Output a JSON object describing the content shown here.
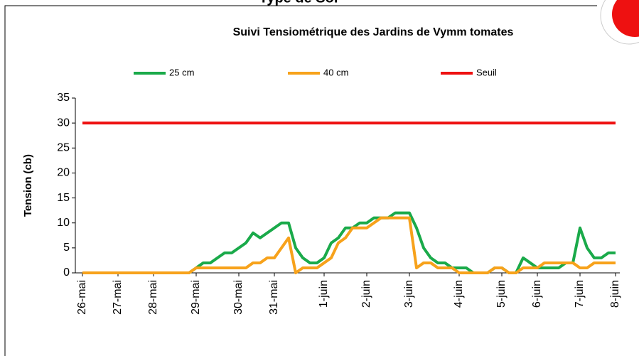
{
  "header_text": "Type de Sol",
  "chart_data": {
    "type": "line",
    "title": "Suivi Tensiométrique des Jardins de Vymm tomates",
    "y_label": "Tension (cb)",
    "categories": [
      "26-mai",
      null,
      null,
      null,
      null,
      "27-mai",
      null,
      null,
      null,
      null,
      "28-mai",
      null,
      null,
      null,
      null,
      null,
      "29-mai",
      null,
      null,
      null,
      null,
      null,
      "30-mai",
      null,
      null,
      null,
      null,
      "31-mai",
      null,
      null,
      null,
      null,
      null,
      null,
      "1-juin",
      null,
      null,
      null,
      null,
      null,
      "2-juin",
      null,
      null,
      null,
      null,
      null,
      "3-juin",
      null,
      null,
      null,
      null,
      null,
      null,
      "4-juin",
      null,
      null,
      null,
      null,
      null,
      "5-juin",
      null,
      null,
      null,
      null,
      "6-juin",
      null,
      null,
      null,
      null,
      null,
      "7-juin",
      null,
      null,
      null,
      null,
      "8-juin"
    ],
    "series": [
      {
        "name": "25 cm",
        "color": "#1aaa4a",
        "values": [
          0,
          0,
          0,
          0,
          0,
          0,
          0,
          0,
          0,
          0,
          0,
          0,
          0,
          0,
          0,
          0,
          1,
          2,
          2,
          3,
          4,
          4,
          5,
          6,
          8,
          7,
          8,
          9,
          10,
          10,
          5,
          3,
          2,
          2,
          3,
          6,
          7,
          9,
          9,
          10,
          10,
          11,
          11,
          11,
          12,
          12,
          12,
          9,
          5,
          3,
          2,
          2,
          1,
          1,
          1,
          0,
          0,
          0,
          1,
          1,
          0,
          0,
          3,
          2,
          1,
          1,
          1,
          1,
          2,
          2,
          9,
          5,
          3,
          3,
          4,
          4
        ]
      },
      {
        "name": "40 cm",
        "color": "#f7a21b",
        "values": [
          0,
          0,
          0,
          0,
          0,
          0,
          0,
          0,
          0,
          0,
          0,
          0,
          0,
          0,
          0,
          0,
          1,
          1,
          1,
          1,
          1,
          1,
          1,
          1,
          2,
          2,
          3,
          3,
          5,
          7,
          0,
          1,
          1,
          1,
          2,
          3,
          6,
          7,
          9,
          9,
          9,
          10,
          11,
          11,
          11,
          11,
          11,
          1,
          2,
          2,
          1,
          1,
          1,
          0,
          0,
          0,
          0,
          0,
          1,
          1,
          0,
          0,
          1,
          1,
          1,
          2,
          2,
          2,
          2,
          2,
          1,
          1,
          2,
          2,
          2,
          2
        ]
      },
      {
        "name": "Seuil",
        "color": "#ee1111",
        "values": [
          30,
          30,
          30,
          30,
          30,
          30,
          30,
          30,
          30,
          30,
          30,
          30,
          30,
          30,
          30,
          30,
          30,
          30,
          30,
          30,
          30,
          30,
          30,
          30,
          30,
          30,
          30,
          30,
          30,
          30,
          30,
          30,
          30,
          30,
          30,
          30,
          30,
          30,
          30,
          30,
          30,
          30,
          30,
          30,
          30,
          30,
          30,
          30,
          30,
          30,
          30,
          30,
          30,
          30,
          30,
          30,
          30,
          30,
          30,
          30,
          30,
          30,
          30,
          30,
          30,
          30,
          30,
          30,
          30,
          30,
          30,
          30,
          30,
          30,
          30,
          30
        ]
      }
    ],
    "ylim": [
      0,
      35
    ],
    "yticks": [
      0,
      5,
      10,
      15,
      20,
      25,
      30,
      35
    ],
    "grid": false,
    "legend": "top"
  }
}
